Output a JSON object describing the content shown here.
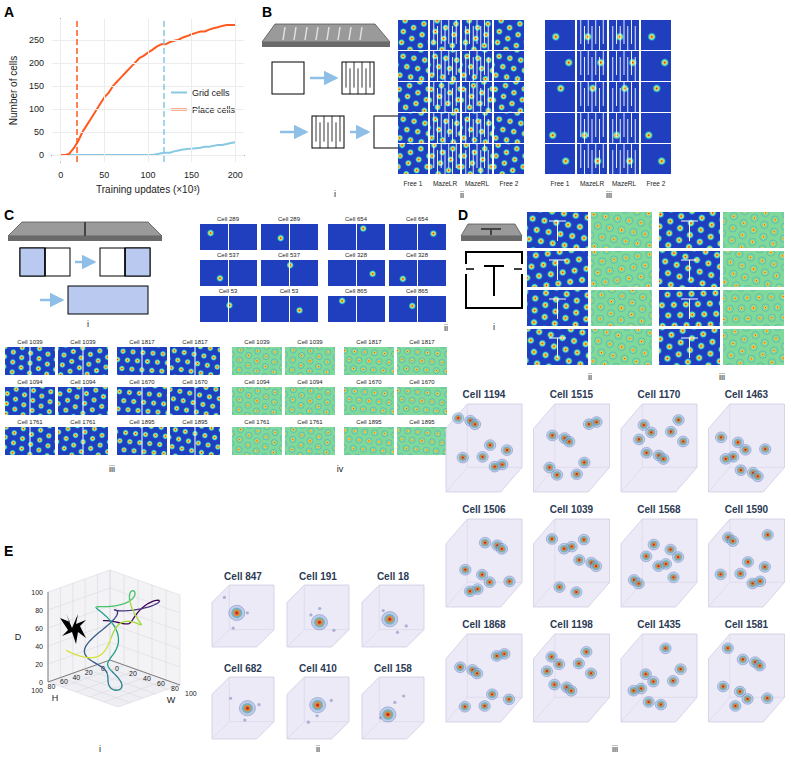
{
  "chart_data": {
    "type": "line",
    "x_label": "Training updates (×10³)",
    "y_label": "Number of cells",
    "xlim": [
      -10,
      210
    ],
    "xticks": [
      0,
      50,
      100,
      150,
      200
    ],
    "ylim": [
      -15,
      295
    ],
    "yticks": [
      0,
      50,
      100,
      150,
      200,
      250
    ],
    "grid": true,
    "legend": "right",
    "series": [
      {
        "name": "Grid cells",
        "color": "#87c9e3",
        "vline": 118,
        "x": [
          0,
          20,
          40,
          60,
          80,
          100,
          105,
          110,
          115,
          120,
          125,
          130,
          135,
          140,
          145,
          150,
          155,
          160,
          165,
          170,
          175,
          180,
          185,
          190,
          195,
          200
        ],
        "values": [
          0,
          0,
          0,
          0,
          0,
          0,
          0,
          2,
          4,
          5,
          5,
          8,
          10,
          12,
          13,
          14,
          15,
          16,
          18,
          18,
          20,
          22,
          22,
          24,
          26,
          28
        ]
      },
      {
        "name": "Place cells",
        "color": "#ff5a1f",
        "vline": 18,
        "x": [
          0,
          5,
          10,
          15,
          20,
          25,
          30,
          35,
          40,
          45,
          50,
          55,
          60,
          65,
          70,
          75,
          80,
          85,
          90,
          95,
          100,
          105,
          110,
          115,
          120,
          125,
          130,
          135,
          140,
          145,
          150,
          155,
          160,
          165,
          170,
          175,
          180,
          185,
          190,
          195,
          200
        ],
        "values": [
          0,
          0,
          3,
          15,
          30,
          50,
          65,
          80,
          95,
          110,
          125,
          135,
          150,
          160,
          170,
          180,
          190,
          200,
          210,
          215,
          222,
          228,
          235,
          240,
          240,
          245,
          248,
          250,
          255,
          258,
          262,
          265,
          268,
          268,
          272,
          275,
          277,
          280,
          282,
          282,
          282
        ]
      }
    ]
  },
  "letters": [
    "A",
    "B",
    "C",
    "D",
    "E"
  ],
  "panels": {
    "B": {
      "roman": [
        "i",
        "ii",
        "iii"
      ],
      "columns": [
        "Free 1",
        "MazeLR",
        "MazeRL",
        "Free 2"
      ]
    },
    "C": {
      "roman": [
        "i",
        "ii",
        "iii",
        "iv"
      ],
      "ii_cells": [
        "Cell 289",
        "Cell 654",
        "Cell 537",
        "Cell 328",
        "Cell 53",
        "Cell 865"
      ],
      "iii_cells": [
        "Cell 1039",
        "Cell 1817",
        "Cell 1094",
        "Cell 1670",
        "Cell 1761",
        "Cell 1895"
      ]
    },
    "D": {
      "roman": [
        "i",
        "ii",
        "iii"
      ]
    },
    "E": {
      "roman": [
        "i",
        "ii",
        "iii"
      ],
      "axes": [
        {
          "title": "D",
          "ticks": [
            0,
            20,
            40,
            60,
            80,
            100
          ]
        },
        {
          "title": "H",
          "ticks": [
            0,
            20,
            40,
            60,
            80,
            100
          ]
        },
        {
          "title": "W",
          "ticks": [
            0,
            20,
            40,
            60,
            80,
            100
          ]
        }
      ],
      "ii_cells": [
        "Cell 847",
        "Cell 191",
        "Cell 18",
        "Cell 682",
        "Cell 410",
        "Cell 158"
      ],
      "iii_cells": [
        "Cell 1194",
        "Cell 1515",
        "Cell 1170",
        "Cell 1463",
        "Cell 1506",
        "Cell 1039",
        "Cell 1568",
        "Cell 1590",
        "Cell 1868",
        "Cell 1198",
        "Cell 1435",
        "Cell 1581"
      ]
    }
  }
}
